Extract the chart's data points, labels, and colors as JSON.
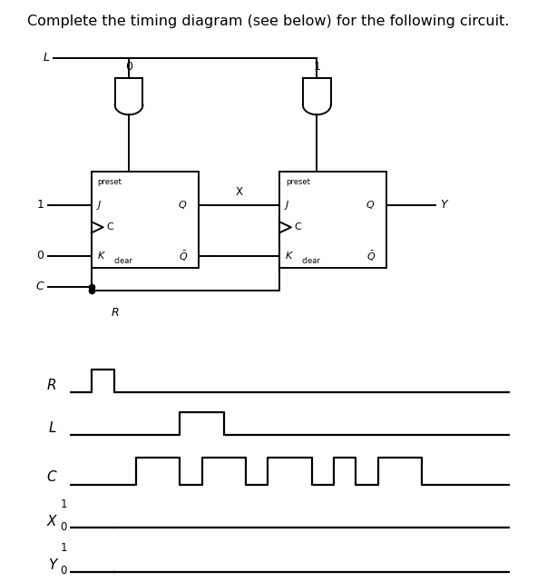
{
  "title": "Complete the timing diagram (see below) for the following circuit.",
  "title_fontsize": 11.5,
  "background_color": "#ffffff",
  "signals": {
    "R": {
      "times": [
        0,
        1,
        1,
        2,
        2,
        20
      ],
      "values": [
        0,
        0,
        1,
        1,
        0,
        0
      ]
    },
    "L": {
      "times": [
        0,
        5,
        5,
        7,
        7,
        20
      ],
      "values": [
        0,
        0,
        1,
        1,
        0,
        0
      ]
    },
    "C": {
      "times": [
        0,
        3,
        3,
        5,
        5,
        6,
        6,
        8,
        8,
        9,
        9,
        11,
        11,
        12,
        12,
        13,
        13,
        14,
        14,
        16,
        16,
        20
      ],
      "values": [
        0,
        0,
        1,
        1,
        0,
        0,
        1,
        1,
        0,
        0,
        1,
        1,
        0,
        0,
        1,
        1,
        0,
        0,
        1,
        1,
        0,
        0
      ]
    },
    "X": {
      "times": [
        0,
        2
      ],
      "values": [
        0,
        0
      ]
    },
    "Y": {
      "times": [
        0,
        2
      ],
      "values": [
        0,
        0
      ]
    }
  },
  "time_max": 20,
  "line_color": "#000000",
  "label_fontsize": 11,
  "tick_fontsize": 8.5
}
